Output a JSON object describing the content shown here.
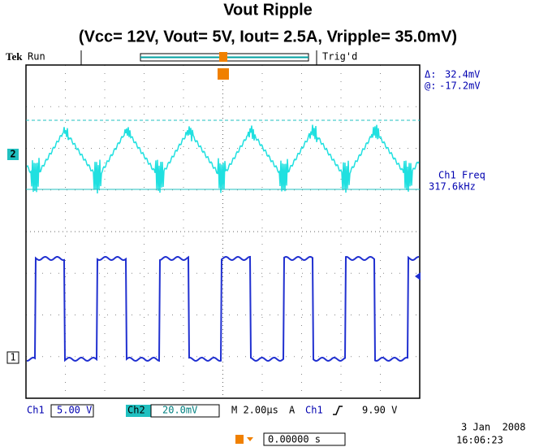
{
  "header": {
    "title": "Vout Ripple",
    "subtitle": "(Vcc= 12V, Vout= 5V, Iout= 2.5A, Vripple= 35.0mV)"
  },
  "status": {
    "brand": "Tek",
    "state": "Run",
    "trigger_state": "Trig'd"
  },
  "cursor_readout": {
    "delta_label": "Δ:",
    "delta_value": "32.4mV",
    "position_label": "@:",
    "position_value": "-17.2mV"
  },
  "measurement": {
    "label": "Ch1 Freq",
    "value": "317.6kHz"
  },
  "channel_markers": {
    "ch2": "2",
    "ch1": "1"
  },
  "settings": {
    "ch1_label": "Ch1",
    "ch1_scale": "5.00 V",
    "ch2_label": "Ch2",
    "ch2_scale": "20.0mV",
    "timebase": "M 2.00µs",
    "trigger_mode": "A",
    "trigger_source": "Ch1",
    "trigger_level": "9.90 V",
    "trigger_position": "0.00000 s"
  },
  "footer": {
    "date": "3 Jan  2008",
    "time": "16:06:23"
  }
}
